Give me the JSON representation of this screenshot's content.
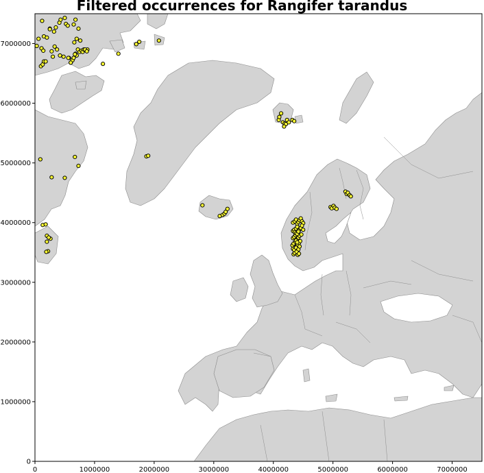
{
  "title": "Filtered occurrences for Rangifer tarandus",
  "colors": {
    "land": "#d3d3d3",
    "sea": "#ffffff",
    "border": "#8a8a8a",
    "marker_fill": "#ffff33",
    "marker_edge": "#000000"
  },
  "map": {
    "xlim": [
      0,
      7500000
    ],
    "ylim": [
      0,
      7500000
    ],
    "x_ticks": [
      0,
      1000000,
      2000000,
      3000000,
      4000000,
      5000000,
      6000000,
      7000000
    ],
    "y_ticks": [
      0,
      1000000,
      2000000,
      3000000,
      4000000,
      5000000,
      6000000,
      7000000
    ],
    "x_tick_labels": [
      "0",
      "1000000",
      "2000000",
      "3000000",
      "4000000",
      "5000000",
      "6000000",
      "7000000"
    ],
    "y_tick_labels": [
      "0",
      "1000000",
      "2000000",
      "3000000",
      "4000000",
      "5000000",
      "6000000",
      "7000000"
    ]
  },
  "chart_data": {
    "type": "scatter",
    "series": [
      {
        "x": [
          30000,
          60000,
          110000,
          140000,
          150000,
          200000,
          250000,
          280000,
          300000,
          330000,
          370000,
          420000,
          480000,
          520000,
          570000,
          600000,
          630000,
          650000,
          680000,
          700000,
          720000,
          750000,
          780000,
          800000,
          820000,
          850000,
          880000,
          1140000,
          1400000,
          1700000,
          1750000,
          2080000,
          100000,
          130000,
          150000,
          180000,
          250000,
          320000,
          350000,
          410000,
          430000,
          500000,
          550000,
          650000,
          680000,
          730000,
          760000,
          840000,
          870000,
          560000,
          600000,
          670000,
          120000,
          660000,
          700000,
          1870000,
          1900000,
          90000,
          280000,
          500000,
          670000,
          730000,
          130000,
          180000,
          200000,
          260000,
          200000,
          230000,
          220000,
          190000,
          4090000,
          4100000,
          4130000,
          4160000,
          4190000,
          4210000,
          4230000,
          4260000,
          4320000,
          4350000,
          4180000,
          2810000,
          3100000,
          3150000,
          3180000,
          3200000,
          3230000,
          5210000,
          5230000,
          5250000,
          5280000,
          5300000,
          4960000,
          4980000,
          5010000,
          5030000,
          5060000,
          4330000,
          4360000,
          4380000,
          4400000,
          4420000,
          4440000,
          4460000,
          4480000,
          4500000,
          4330000,
          4350000,
          4380000,
          4400000,
          4430000,
          4460000,
          4480000,
          4500000,
          4330000,
          4350000,
          4370000,
          4400000,
          4420000,
          4440000,
          4470000,
          4320000,
          4340000,
          4370000,
          4390000,
          4410000,
          4430000,
          4450000,
          4330000,
          4350000,
          4380000,
          4400000,
          4420000,
          4440000,
          4340000,
          4360000,
          4390000,
          4410000,
          4430000,
          4360000,
          4380000,
          4400000,
          4420000,
          4380000,
          4400000
        ],
        "y": [
          6960000,
          7080000,
          6920000,
          6880000,
          7120000,
          7100000,
          7250000,
          6870000,
          6780000,
          6950000,
          6900000,
          6800000,
          6780000,
          7330000,
          6760000,
          6680000,
          6720000,
          6760000,
          6830000,
          6800000,
          6900000,
          6860000,
          6880000,
          6860000,
          6900000,
          6890000,
          6900000,
          6660000,
          6830000,
          6990000,
          7030000,
          7050000,
          6620000,
          6650000,
          6700000,
          6700000,
          7240000,
          7200000,
          7270000,
          7350000,
          7400000,
          7430000,
          7300000,
          7320000,
          7400000,
          7250000,
          7050000,
          6900000,
          6870000,
          6760000,
          6680000,
          6820000,
          7380000,
          7020000,
          7080000,
          5110000,
          5120000,
          5060000,
          4760000,
          4750000,
          5100000,
          4950000,
          3960000,
          3970000,
          3680000,
          3730000,
          3780000,
          3750000,
          3520000,
          3510000,
          5720000,
          5770000,
          5830000,
          5680000,
          5660000,
          5650000,
          5720000,
          5680000,
          5720000,
          5700000,
          5610000,
          4290000,
          4110000,
          4130000,
          4150000,
          4180000,
          4230000,
          4520000,
          4480000,
          4500000,
          4460000,
          4440000,
          4260000,
          4240000,
          4280000,
          4250000,
          4230000,
          4000000,
          4020000,
          4050000,
          3980000,
          4010000,
          4040000,
          4070000,
          4020000,
          3990000,
          3860000,
          3880000,
          3900000,
          3930000,
          3870000,
          3910000,
          3950000,
          3880000,
          3740000,
          3760000,
          3790000,
          3720000,
          3750000,
          3780000,
          3800000,
          3620000,
          3650000,
          3680000,
          3600000,
          3630000,
          3660000,
          3690000,
          3560000,
          3540000,
          3580000,
          3520000,
          3550000,
          3600000,
          3470000,
          3490000,
          3510000,
          3460000,
          3480000,
          3840000,
          3820000,
          3810000,
          3850000,
          3700000,
          3670000
        ]
      }
    ]
  }
}
